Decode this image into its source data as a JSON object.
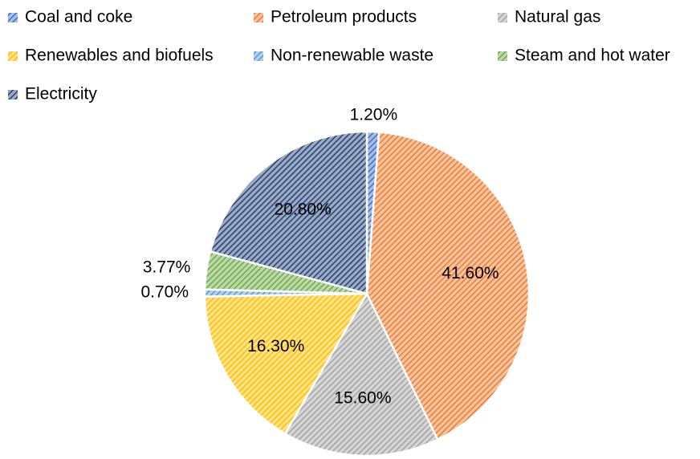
{
  "chart_data": {
    "type": "pie",
    "categories": [
      "Coal and coke",
      "Petroleum products",
      "Natural gas",
      "Renewables and biofuels",
      "Non-renewable waste",
      "Steam and hot water",
      "Electricity"
    ],
    "values": [
      1.2,
      41.6,
      15.6,
      16.3,
      0.7,
      3.77,
      20.8
    ],
    "value_labels": [
      "1.20%",
      "41.60%",
      "15.60%",
      "16.30%",
      "0.70%",
      "3.77%",
      "20.80%"
    ],
    "colors": [
      "#4472c4",
      "#ed7d31",
      "#a5a5a5",
      "#ffc000",
      "#5b9bd5",
      "#70ad47",
      "#264478"
    ],
    "legend": "top"
  }
}
